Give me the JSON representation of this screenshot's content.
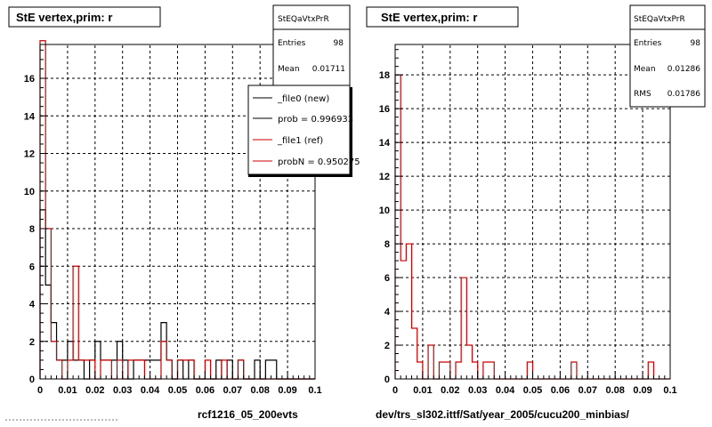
{
  "pads": [
    {
      "title": "StE  vertex,prim: r",
      "stats": {
        "name": "StEQaVtxPrR",
        "rows": [
          {
            "label": "Entries",
            "value": "98"
          },
          {
            "label": "Mean",
            "value": "0.01711"
          }
        ]
      },
      "legend": [
        "_file0 (new)",
        "prob = 0.996933",
        "_file1 (ref)",
        "probN = 0.950275"
      ],
      "bottom_label": "rcf1216_05_200evts"
    },
    {
      "title": "StE  vertex,prim: r",
      "stats": {
        "name": "StEQaVtxPrR",
        "rows": [
          {
            "label": "Entries",
            "value": "98"
          },
          {
            "label": "Mean",
            "value": "0.01286"
          },
          {
            "label": "RMS",
            "value": "0.01786"
          }
        ]
      },
      "legend": [],
      "bottom_label": "dev/trs_sl302.ittf/Sat/year_2005/cucu200_minbias/"
    }
  ],
  "colors": {
    "new": "#000000",
    "ref": "#cc0000",
    "grid": "#000000"
  },
  "chart_data": [
    {
      "type": "histogram",
      "bin_width": 0.002,
      "xlim": [
        0,
        0.1
      ],
      "ylim": [
        0,
        17.8
      ],
      "xticks": [
        "0",
        "0.01",
        "0.02",
        "0.03",
        "0.04",
        "0.05",
        "0.06",
        "0.07",
        "0.08",
        "0.09",
        "0.1"
      ],
      "yticks": [
        "0",
        "2",
        "4",
        "6",
        "8",
        "10",
        "12",
        "14",
        "16"
      ],
      "grid": true,
      "series": [
        {
          "name": "_file0 (new)",
          "color": "#000000",
          "values": [
            9,
            5,
            3,
            1,
            1,
            2,
            1,
            1,
            0,
            1,
            2,
            1,
            1,
            1,
            2,
            1,
            0,
            1,
            1,
            1,
            1,
            1,
            3,
            1,
            0,
            1,
            0,
            1,
            0,
            0,
            0,
            0,
            1,
            0,
            1,
            0,
            1,
            0,
            0,
            1,
            0,
            1,
            1,
            0,
            0,
            0,
            0,
            0,
            0,
            0
          ]
        },
        {
          "name": "_file1 (ref)",
          "color": "#cc0000",
          "values": [
            18,
            8,
            2,
            1,
            0,
            1,
            6,
            1,
            1,
            1,
            0,
            1,
            1,
            0,
            1,
            0,
            1,
            1,
            1,
            0,
            0,
            0,
            2,
            1,
            0,
            1,
            1,
            1,
            0,
            0,
            1,
            0,
            0,
            1,
            0,
            0,
            1,
            0,
            0,
            0,
            0,
            0,
            0,
            0,
            0,
            0,
            0,
            0,
            0,
            0
          ]
        }
      ]
    },
    {
      "type": "histogram",
      "bin_width": 0.002,
      "xlim": [
        0,
        0.1
      ],
      "ylim": [
        0,
        19.8
      ],
      "xticks": [
        "0",
        "0.01",
        "0.02",
        "0.03",
        "0.04",
        "0.05",
        "0.06",
        "0.07",
        "0.08",
        "0.09",
        "0.1"
      ],
      "yticks": [
        "0",
        "2",
        "4",
        "6",
        "8",
        "10",
        "12",
        "14",
        "16",
        "18"
      ],
      "grid": true,
      "series": [
        {
          "name": "",
          "color": "#cc0000",
          "values": [
            18,
            7,
            8,
            3,
            1,
            0,
            2,
            0,
            1,
            1,
            0,
            1,
            6,
            2,
            1,
            0,
            1,
            1,
            0,
            0,
            0,
            0,
            0,
            0,
            1,
            0,
            0,
            0,
            0,
            0,
            0,
            0,
            1,
            0,
            0,
            0,
            0,
            0,
            0,
            0,
            0,
            0,
            0,
            0,
            0,
            0,
            1,
            0,
            0,
            0
          ]
        }
      ]
    }
  ]
}
